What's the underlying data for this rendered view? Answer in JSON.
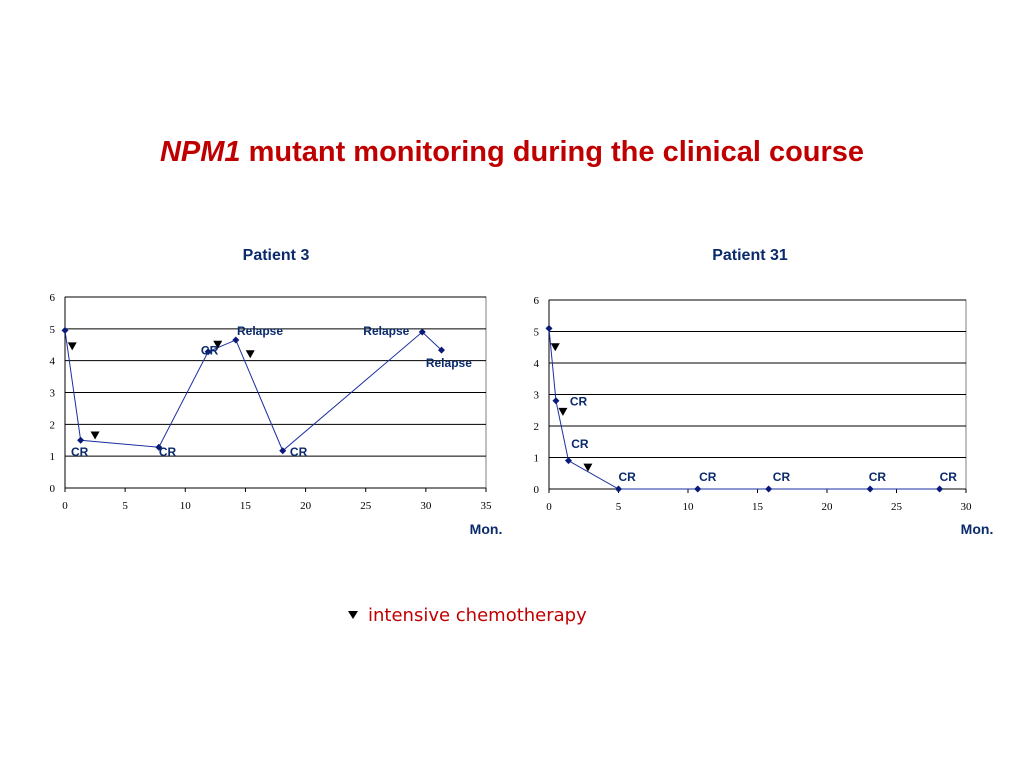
{
  "slide": {
    "title_gene": "NPM1",
    "title_rest": " mutant monitoring during the clinical course"
  },
  "legend": {
    "label": "intensive chemotherapy",
    "marker_icon": "black-down-triangle-icon"
  },
  "colors": {
    "series": "#1a2fa0",
    "marker": "#0a1a7a",
    "annotation": "#0a2a6b",
    "title": "#c00000",
    "grid": "#000000"
  },
  "chart_data": [
    {
      "type": "line",
      "title": "Patient 3",
      "xlabel": "Mon.",
      "ylabel": "",
      "xlim": [
        0,
        35
      ],
      "ylim": [
        0,
        6
      ],
      "xticks": [
        0,
        5,
        10,
        15,
        20,
        25,
        30,
        35
      ],
      "yticks": [
        0,
        1,
        2,
        3,
        4,
        5,
        6
      ],
      "grid": "horizontal",
      "series": [
        {
          "name": "",
          "x": [
            0,
            1.3,
            7.8,
            11.9,
            14.2,
            18.1,
            29.7,
            31.3
          ],
          "y": [
            4.95,
            1.5,
            1.28,
            4.28,
            4.65,
            1.17,
            4.9,
            4.33
          ]
        }
      ],
      "annotations": [
        {
          "text": "CR",
          "x": 0.5,
          "y": 1.0
        },
        {
          "text": "CR",
          "x": 7.8,
          "y": 1.0
        },
        {
          "text": "CR",
          "x": 11.3,
          "y": 4.2
        },
        {
          "text": "Relapse",
          "x": 14.3,
          "y": 4.8
        },
        {
          "text": "CR",
          "x": 18.7,
          "y": 1.0
        },
        {
          "text": "Relapse",
          "x": 24.8,
          "y": 4.8
        },
        {
          "text": "Relapse",
          "x": 30.0,
          "y": 3.8
        }
      ],
      "chemo_markers": [
        {
          "x": 0.6,
          "y": 4.45
        },
        {
          "x": 2.5,
          "y": 1.65
        },
        {
          "x": 12.7,
          "y": 4.5
        },
        {
          "x": 15.4,
          "y": 4.2
        }
      ]
    },
    {
      "type": "line",
      "title": "Patient 31",
      "xlabel": "Mon.",
      "ylabel": "",
      "xlim": [
        0,
        30
      ],
      "ylim": [
        0,
        6
      ],
      "xticks": [
        0,
        5,
        10,
        15,
        20,
        25,
        30
      ],
      "yticks": [
        0,
        1,
        2,
        3,
        4,
        5,
        6
      ],
      "grid": "horizontal",
      "series": [
        {
          "name": "",
          "x": [
            0,
            0.5,
            1.4,
            5.0,
            10.7,
            15.8,
            23.1,
            28.1
          ],
          "y": [
            5.1,
            2.8,
            0.9,
            0.0,
            0.0,
            0.0,
            0.0,
            0.0
          ]
        }
      ],
      "annotations": [
        {
          "text": "CR",
          "x": 1.5,
          "y": 2.65
        },
        {
          "text": "CR",
          "x": 1.6,
          "y": 1.3
        },
        {
          "text": "CR",
          "x": 5.0,
          "y": 0.25
        },
        {
          "text": "CR",
          "x": 10.8,
          "y": 0.25
        },
        {
          "text": "CR",
          "x": 16.1,
          "y": 0.25
        },
        {
          "text": "CR",
          "x": 23.0,
          "y": 0.25
        },
        {
          "text": "CR",
          "x": 28.1,
          "y": 0.25
        }
      ],
      "chemo_markers": [
        {
          "x": 0.45,
          "y": 4.5
        },
        {
          "x": 1.0,
          "y": 2.45
        },
        {
          "x": 2.8,
          "y": 0.68
        }
      ]
    }
  ]
}
